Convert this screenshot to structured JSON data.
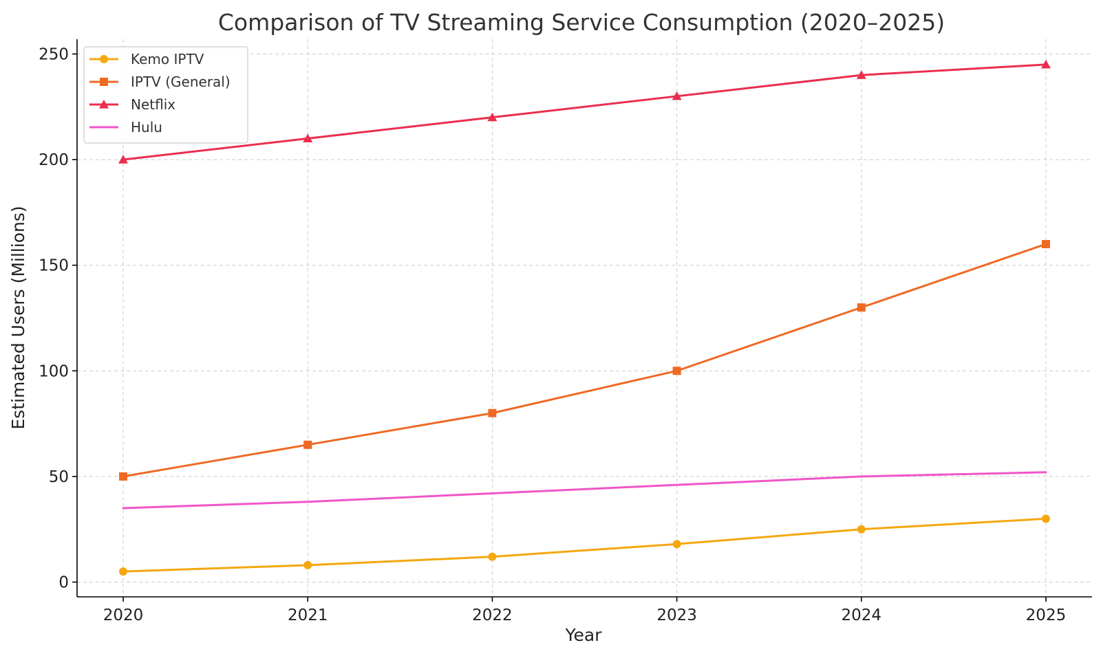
{
  "chart_data": {
    "type": "line",
    "title": "Comparison of TV Streaming Service Consumption (2020–2025)",
    "xlabel": "Year",
    "ylabel": "Estimated Users (Millions)",
    "x": [
      2020,
      2021,
      2022,
      2023,
      2024,
      2025
    ],
    "x_tick_labels": [
      "2020",
      "2021",
      "2022",
      "2023",
      "2024",
      "2025"
    ],
    "y_ticks": [
      0,
      50,
      100,
      150,
      200,
      250
    ],
    "y_tick_labels": [
      "0",
      "50",
      "100",
      "150",
      "200",
      "250"
    ],
    "ylim": [
      -7,
      257
    ],
    "xlim": [
      2019.75,
      2025.25
    ],
    "grid": true,
    "legend_position": "top-left",
    "series": [
      {
        "name": "Kemo IPTV",
        "values": [
          5,
          8,
          12,
          18,
          25,
          30
        ],
        "color": "#F5A70F",
        "marker": "circle"
      },
      {
        "name": "IPTV (General)",
        "values": [
          50,
          65,
          80,
          100,
          130,
          160
        ],
        "color": "#EE6A24",
        "marker": "square"
      },
      {
        "name": "Netflix",
        "values": [
          200,
          210,
          220,
          230,
          240,
          245
        ],
        "color": "#EB2E4E",
        "marker": "triangle"
      },
      {
        "name": "Hulu",
        "values": [
          35,
          38,
          42,
          46,
          50,
          52
        ],
        "color": "#F055C9",
        "marker": "none"
      }
    ]
  }
}
